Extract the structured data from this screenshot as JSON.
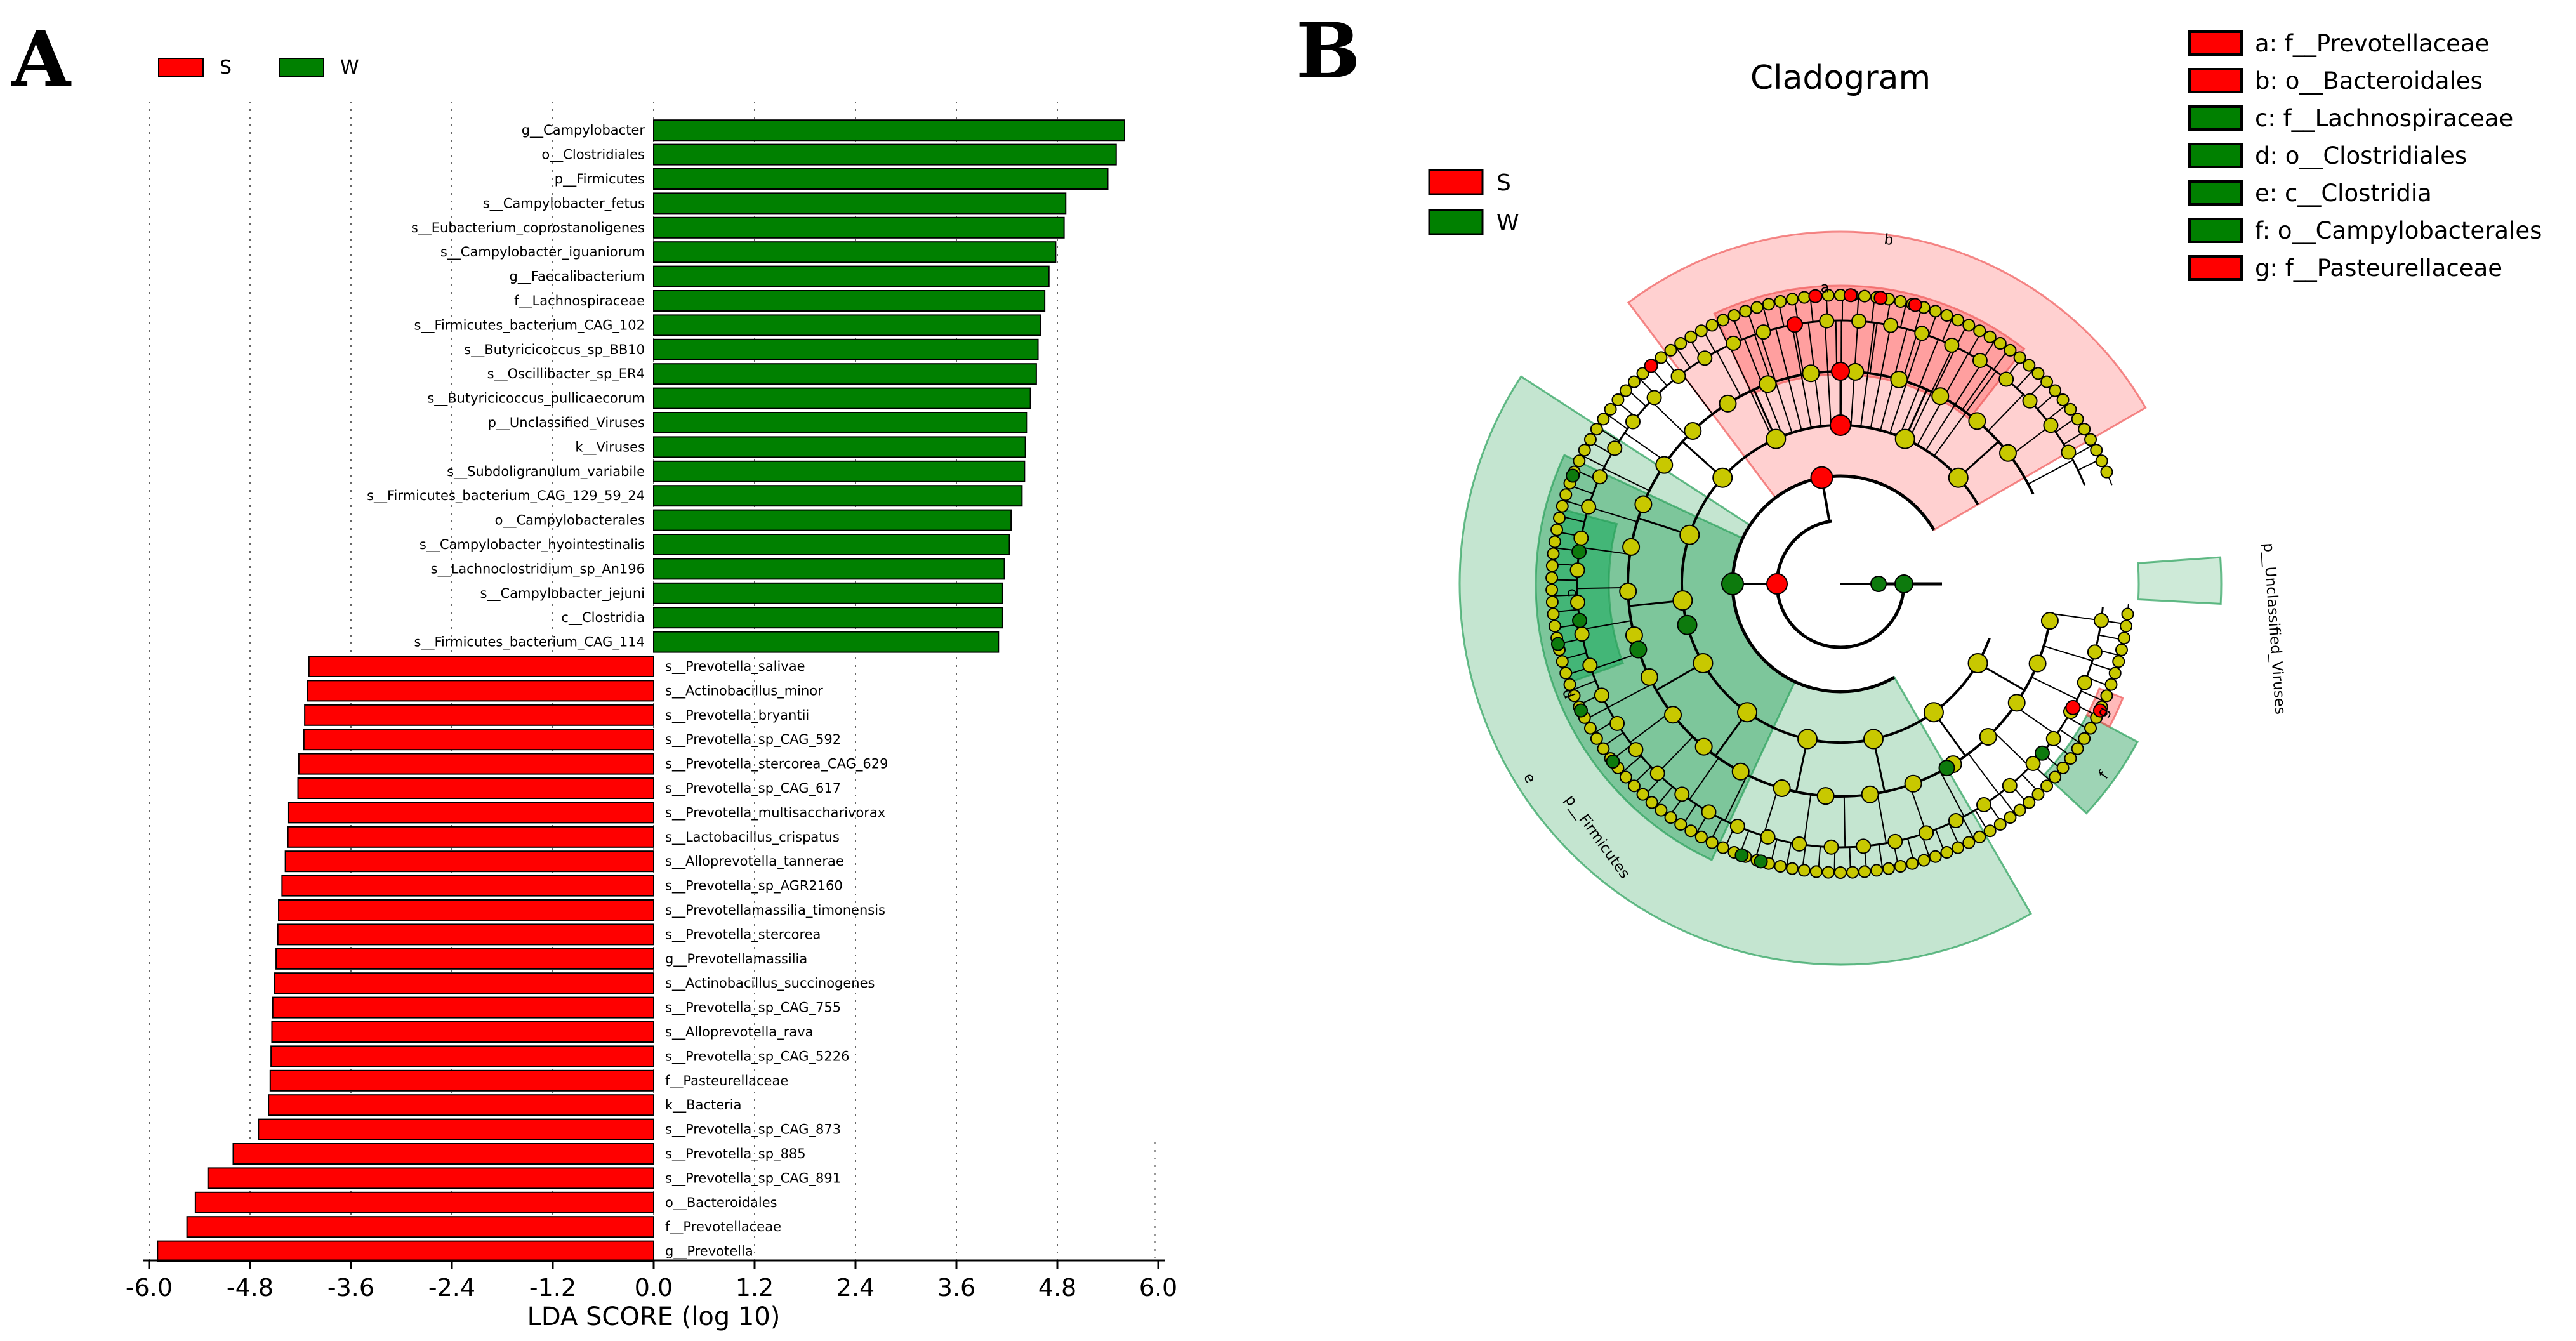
{
  "panel_a": {
    "letter": "A"
  },
  "panel_b": {
    "letter": "B"
  },
  "chart_data": [
    {
      "type": "bar",
      "orientation": "horizontal",
      "title": "",
      "xlabel": "LDA SCORE (log 10)",
      "ylabel": "",
      "xlim": [
        -6.0,
        6.0
      ],
      "xticks": [
        "-6.0",
        "-4.8",
        "-3.6",
        "-2.4",
        "-1.2",
        "0.0",
        "1.2",
        "2.4",
        "3.6",
        "4.8",
        "6.0"
      ],
      "grid": "vertical dotted",
      "legend": [
        {
          "name": "S",
          "color": "#ff0000"
        },
        {
          "name": "W",
          "color": "#008000"
        }
      ],
      "legend_placement": "top-left",
      "bars": [
        {
          "label": "g__Campylobacter",
          "value": 5.6,
          "group": "W"
        },
        {
          "label": "o__Clostridiales",
          "value": 5.5,
          "group": "W"
        },
        {
          "label": "p__Firmicutes",
          "value": 5.4,
          "group": "W"
        },
        {
          "label": "s__Campylobacter_fetus",
          "value": 4.9,
          "group": "W"
        },
        {
          "label": "s__Eubacterium_coprostanoligenes",
          "value": 4.88,
          "group": "W"
        },
        {
          "label": "s__Campylobacter_iguaniorum",
          "value": 4.78,
          "group": "W"
        },
        {
          "label": "g__Faecalibacterium",
          "value": 4.7,
          "group": "W"
        },
        {
          "label": "f__Lachnospiraceae",
          "value": 4.65,
          "group": "W"
        },
        {
          "label": "s__Firmicutes_bacterium_CAG_102",
          "value": 4.6,
          "group": "W"
        },
        {
          "label": "s__Butyricicoccus_sp_BB10",
          "value": 4.57,
          "group": "W"
        },
        {
          "label": "s__Oscillibacter_sp_ER4",
          "value": 4.55,
          "group": "W"
        },
        {
          "label": "s__Butyricicoccus_pullicaecorum",
          "value": 4.48,
          "group": "W"
        },
        {
          "label": "p__Unclassified_Viruses",
          "value": 4.44,
          "group": "W"
        },
        {
          "label": "k__Viruses",
          "value": 4.42,
          "group": "W"
        },
        {
          "label": "s__Subdoligranulum_variabile",
          "value": 4.41,
          "group": "W"
        },
        {
          "label": "s__Firmicutes_bacterium_CAG_129_59_24",
          "value": 4.38,
          "group": "W"
        },
        {
          "label": "o__Campylobacterales",
          "value": 4.25,
          "group": "W"
        },
        {
          "label": "s__Campylobacter_hyointestinalis",
          "value": 4.23,
          "group": "W"
        },
        {
          "label": "s__Lachnoclostridium_sp_An196",
          "value": 4.17,
          "group": "W"
        },
        {
          "label": "s__Campylobacter_jejuni",
          "value": 4.15,
          "group": "W"
        },
        {
          "label": "c__Clostridia",
          "value": 4.15,
          "group": "W"
        },
        {
          "label": "s__Firmicutes_bacterium_CAG_114",
          "value": 4.1,
          "group": "W"
        },
        {
          "label": "s__Prevotella_salivae",
          "value": -4.1,
          "group": "S"
        },
        {
          "label": "s__Actinobacillus_minor",
          "value": -4.12,
          "group": "S"
        },
        {
          "label": "s__Prevotella_bryantii",
          "value": -4.15,
          "group": "S"
        },
        {
          "label": "s__Prevotella_sp_CAG_592",
          "value": -4.16,
          "group": "S"
        },
        {
          "label": "s__Prevotella_stercorea_CAG_629",
          "value": -4.22,
          "group": "S"
        },
        {
          "label": "s__Prevotella_sp_CAG_617",
          "value": -4.23,
          "group": "S"
        },
        {
          "label": "s__Prevotella_multisaccharivorax",
          "value": -4.34,
          "group": "S"
        },
        {
          "label": "s__Lactobacillus_crispatus",
          "value": -4.35,
          "group": "S"
        },
        {
          "label": "s__Alloprevotella_tannerae",
          "value": -4.38,
          "group": "S"
        },
        {
          "label": "s__Prevotella_sp_AGR2160",
          "value": -4.42,
          "group": "S"
        },
        {
          "label": "s__Prevotellamassilia_timonensis",
          "value": -4.46,
          "group": "S"
        },
        {
          "label": "s__Prevotella_stercorea",
          "value": -4.47,
          "group": "S"
        },
        {
          "label": "g__Prevotellamassilia",
          "value": -4.49,
          "group": "S"
        },
        {
          "label": "s__Actinobacillus_succinogenes",
          "value": -4.51,
          "group": "S"
        },
        {
          "label": "s__Prevotella_sp_CAG_755",
          "value": -4.53,
          "group": "S"
        },
        {
          "label": "s__Alloprevotella_rava",
          "value": -4.54,
          "group": "S"
        },
        {
          "label": "s__Prevotella_sp_CAG_5226",
          "value": -4.55,
          "group": "S"
        },
        {
          "label": "f__Pasteurellaceae",
          "value": -4.56,
          "group": "S"
        },
        {
          "label": "k__Bacteria",
          "value": -4.58,
          "group": "S"
        },
        {
          "label": "s__Prevotella_sp_CAG_873",
          "value": -4.7,
          "group": "S"
        },
        {
          "label": "s__Prevotella_sp_885",
          "value": -5.0,
          "group": "S"
        },
        {
          "label": "s__Prevotella_sp_CAG_891",
          "value": -5.3,
          "group": "S"
        },
        {
          "label": "o__Bacteroidales",
          "value": -5.45,
          "group": "S"
        },
        {
          "label": "f__Prevotellaceae",
          "value": -5.55,
          "group": "S"
        },
        {
          "label": "g__Prevotella",
          "value": -5.9,
          "group": "S"
        }
      ]
    },
    {
      "type": "cladogram",
      "title": "Cladogram",
      "group_legend": [
        {
          "name": "S",
          "color": "#ff0000"
        },
        {
          "name": "W",
          "color": "#008000"
        }
      ],
      "clade_legend": [
        {
          "label": "a: f__Prevotellaceae",
          "group": "S",
          "color": "#ff0000"
        },
        {
          "label": "b: o__Bacteroidales",
          "group": "S",
          "color": "#ff0000"
        },
        {
          "label": "c: f__Lachnospiraceae",
          "group": "W",
          "color": "#008000"
        },
        {
          "label": "d: o__Clostridiales",
          "group": "W",
          "color": "#008000"
        },
        {
          "label": "e: c__Clostridia",
          "group": "W",
          "color": "#008000"
        },
        {
          "label": "f: o__Campylobacterales",
          "group": "W",
          "color": "#008000"
        },
        {
          "label": "g: f__Pasteurellaceae",
          "group": "S",
          "color": "#ff0000"
        }
      ],
      "clade_annotations": [
        "a",
        "b",
        "c",
        "d",
        "e",
        "f",
        "g",
        "p__Firmicutes",
        "p__Unclassified_Viruses"
      ],
      "node_color_default": "#c8c800"
    }
  ]
}
